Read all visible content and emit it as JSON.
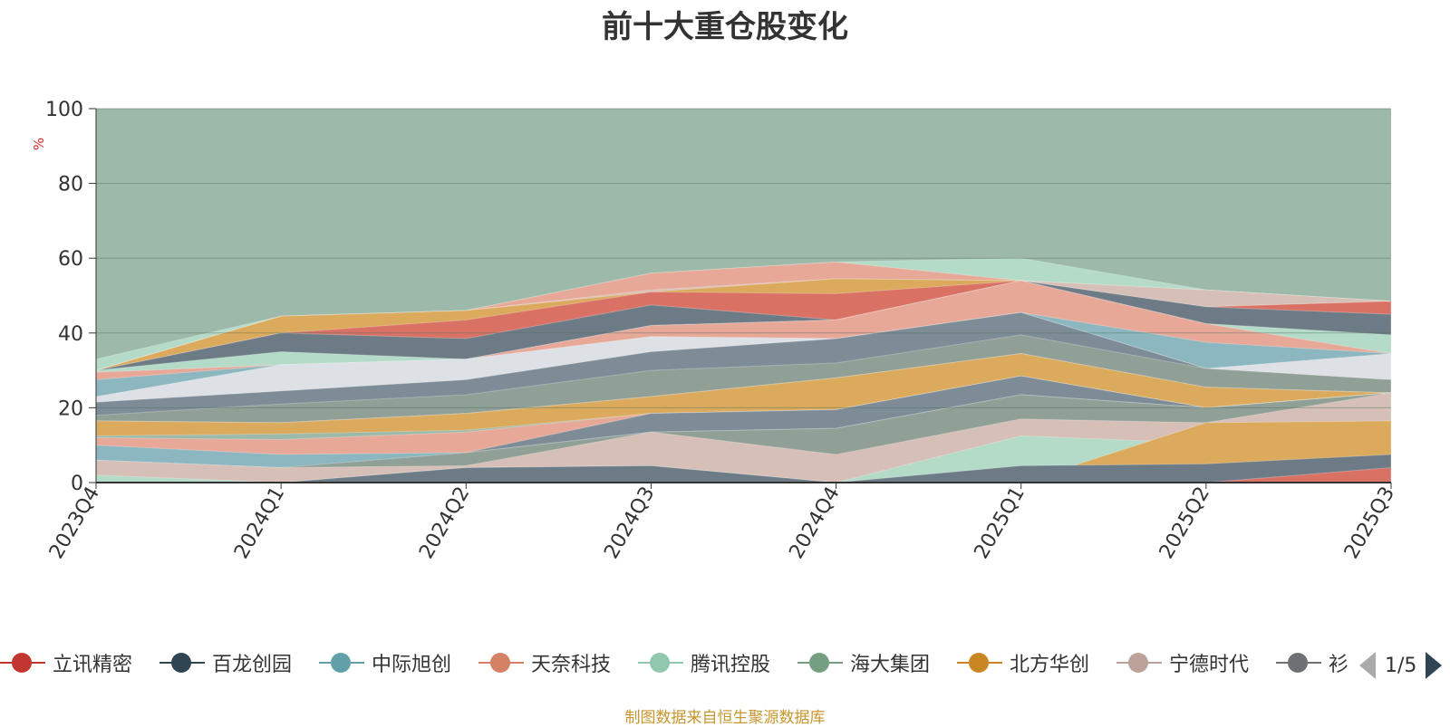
{
  "chart_data": {
    "type": "area",
    "title": "前十大重仓股变化",
    "ylabel": "%",
    "ylim": [
      0,
      100
    ],
    "yticks": [
      0,
      20,
      40,
      60,
      80,
      100
    ],
    "categories": [
      "2023Q4",
      "2024Q1",
      "2024Q2",
      "2024Q3",
      "2024Q4",
      "2025Q1",
      "2025Q2",
      "2025Q3"
    ],
    "background_series_color": "#9db9a9",
    "series": [
      {
        "color": "#6d7b86",
        "values": [
          0,
          0,
          4,
          4.5,
          0,
          4.5,
          5,
          7.5
        ]
      },
      {
        "color": "#d97265",
        "values": [
          0,
          0,
          0,
          0,
          0,
          0,
          0,
          4
        ]
      },
      {
        "color": "#d6bfb7",
        "values": [
          6,
          4,
          4.5,
          13.5,
          7.5,
          17,
          16,
          24
        ]
      },
      {
        "color": "#91a096",
        "values": [
          6,
          4,
          8,
          13.5,
          14.5,
          23.5,
          20,
          24
        ]
      },
      {
        "color": "#7d8c97",
        "values": [
          6,
          4,
          8,
          18.5,
          19.5,
          28.5,
          20,
          24
        ]
      },
      {
        "color": "#b3dbc8",
        "values": [
          2,
          0,
          4,
          4.5,
          0,
          12.5,
          10.5,
          12
        ]
      },
      {
        "color": "#dbaa5c",
        "values": [
          0,
          0,
          0,
          0,
          0,
          0,
          16,
          16.5
        ]
      },
      {
        "color": "#8cb6c0",
        "values": [
          10,
          7.5,
          8,
          13.5,
          14.5,
          23.5,
          20,
          24
        ]
      },
      {
        "color": "#e8a898",
        "values": [
          12,
          11.5,
          13.5,
          18.5,
          19.5,
          28.5,
          20,
          24
        ]
      },
      {
        "color": "#9db9a9",
        "values": [
          12.5,
          13,
          14,
          18.5,
          19.5,
          28.5,
          20,
          24
        ]
      },
      {
        "color": "#d6bfb7",
        "values": [
          16.5,
          16,
          18.5,
          23,
          28,
          34.5,
          25.5,
          24
        ]
      },
      {
        "color": "#dbaa5c",
        "values": [
          16.5,
          16,
          18.5,
          23,
          28,
          34.5,
          25.5,
          24
        ]
      },
      {
        "color": "#91a096",
        "values": [
          18,
          21,
          23.5,
          30,
          32,
          39.5,
          30.5,
          27.5
        ]
      },
      {
        "color": "#7d8c97",
        "values": [
          21.5,
          24.5,
          27.5,
          35,
          38.5,
          45.5,
          30.5,
          27.5
        ]
      },
      {
        "color": "#dde0e4",
        "values": [
          23,
          31.5,
          33,
          39,
          38.5,
          45.5,
          30.5,
          34.5
        ]
      },
      {
        "color": "#8cb6c0",
        "values": [
          27.5,
          31.5,
          33,
          39,
          38.5,
          45.5,
          37.5,
          34.5
        ]
      },
      {
        "color": "#e8a898",
        "values": [
          29.5,
          31.5,
          33,
          42,
          43.5,
          54,
          42.5,
          34.5
        ]
      },
      {
        "color": "#b3dbc8",
        "values": [
          30,
          35,
          33,
          42,
          43.5,
          54,
          42.5,
          39.5
        ]
      },
      {
        "color": "#6d7b86",
        "values": [
          30,
          40,
          38.5,
          47.5,
          43.5,
          54,
          47,
          45
        ]
      },
      {
        "color": "#d97265",
        "values": [
          30,
          40,
          43.5,
          51,
          50.5,
          54,
          47,
          48.5
        ]
      },
      {
        "color": "#dbaa5c",
        "values": [
          30,
          44.5,
          46,
          51,
          54.5,
          54,
          47,
          48.5
        ]
      },
      {
        "color": "#d6bfb7",
        "values": [
          30,
          44.5,
          46,
          51.5,
          54.5,
          54,
          51.5,
          48.5
        ]
      },
      {
        "color": "#e8a898",
        "values": [
          30,
          44.5,
          46,
          56,
          59,
          54,
          51.5,
          48.5
        ]
      },
      {
        "color": "#b3dbc8",
        "values": [
          33,
          44.5,
          46,
          56,
          59,
          60,
          51.5,
          48.5
        ]
      }
    ]
  },
  "legend": {
    "items": [
      {
        "label": "立讯精密",
        "color": "#c23531"
      },
      {
        "label": "百龙创园",
        "color": "#2f4554"
      },
      {
        "label": "中际旭创",
        "color": "#61a0a8"
      },
      {
        "label": "天奈科技",
        "color": "#d48265"
      },
      {
        "label": "腾讯控股",
        "color": "#91c7ae"
      },
      {
        "label": "海大集团",
        "color": "#749f83"
      },
      {
        "label": "北方华创",
        "color": "#ca8622"
      },
      {
        "label": "宁德时代",
        "color": "#bda29a"
      },
      {
        "label": "衫",
        "color": "#6e7074"
      }
    ],
    "page_text": "1/5"
  },
  "source_text": "制图数据来自恒生聚源数据库"
}
